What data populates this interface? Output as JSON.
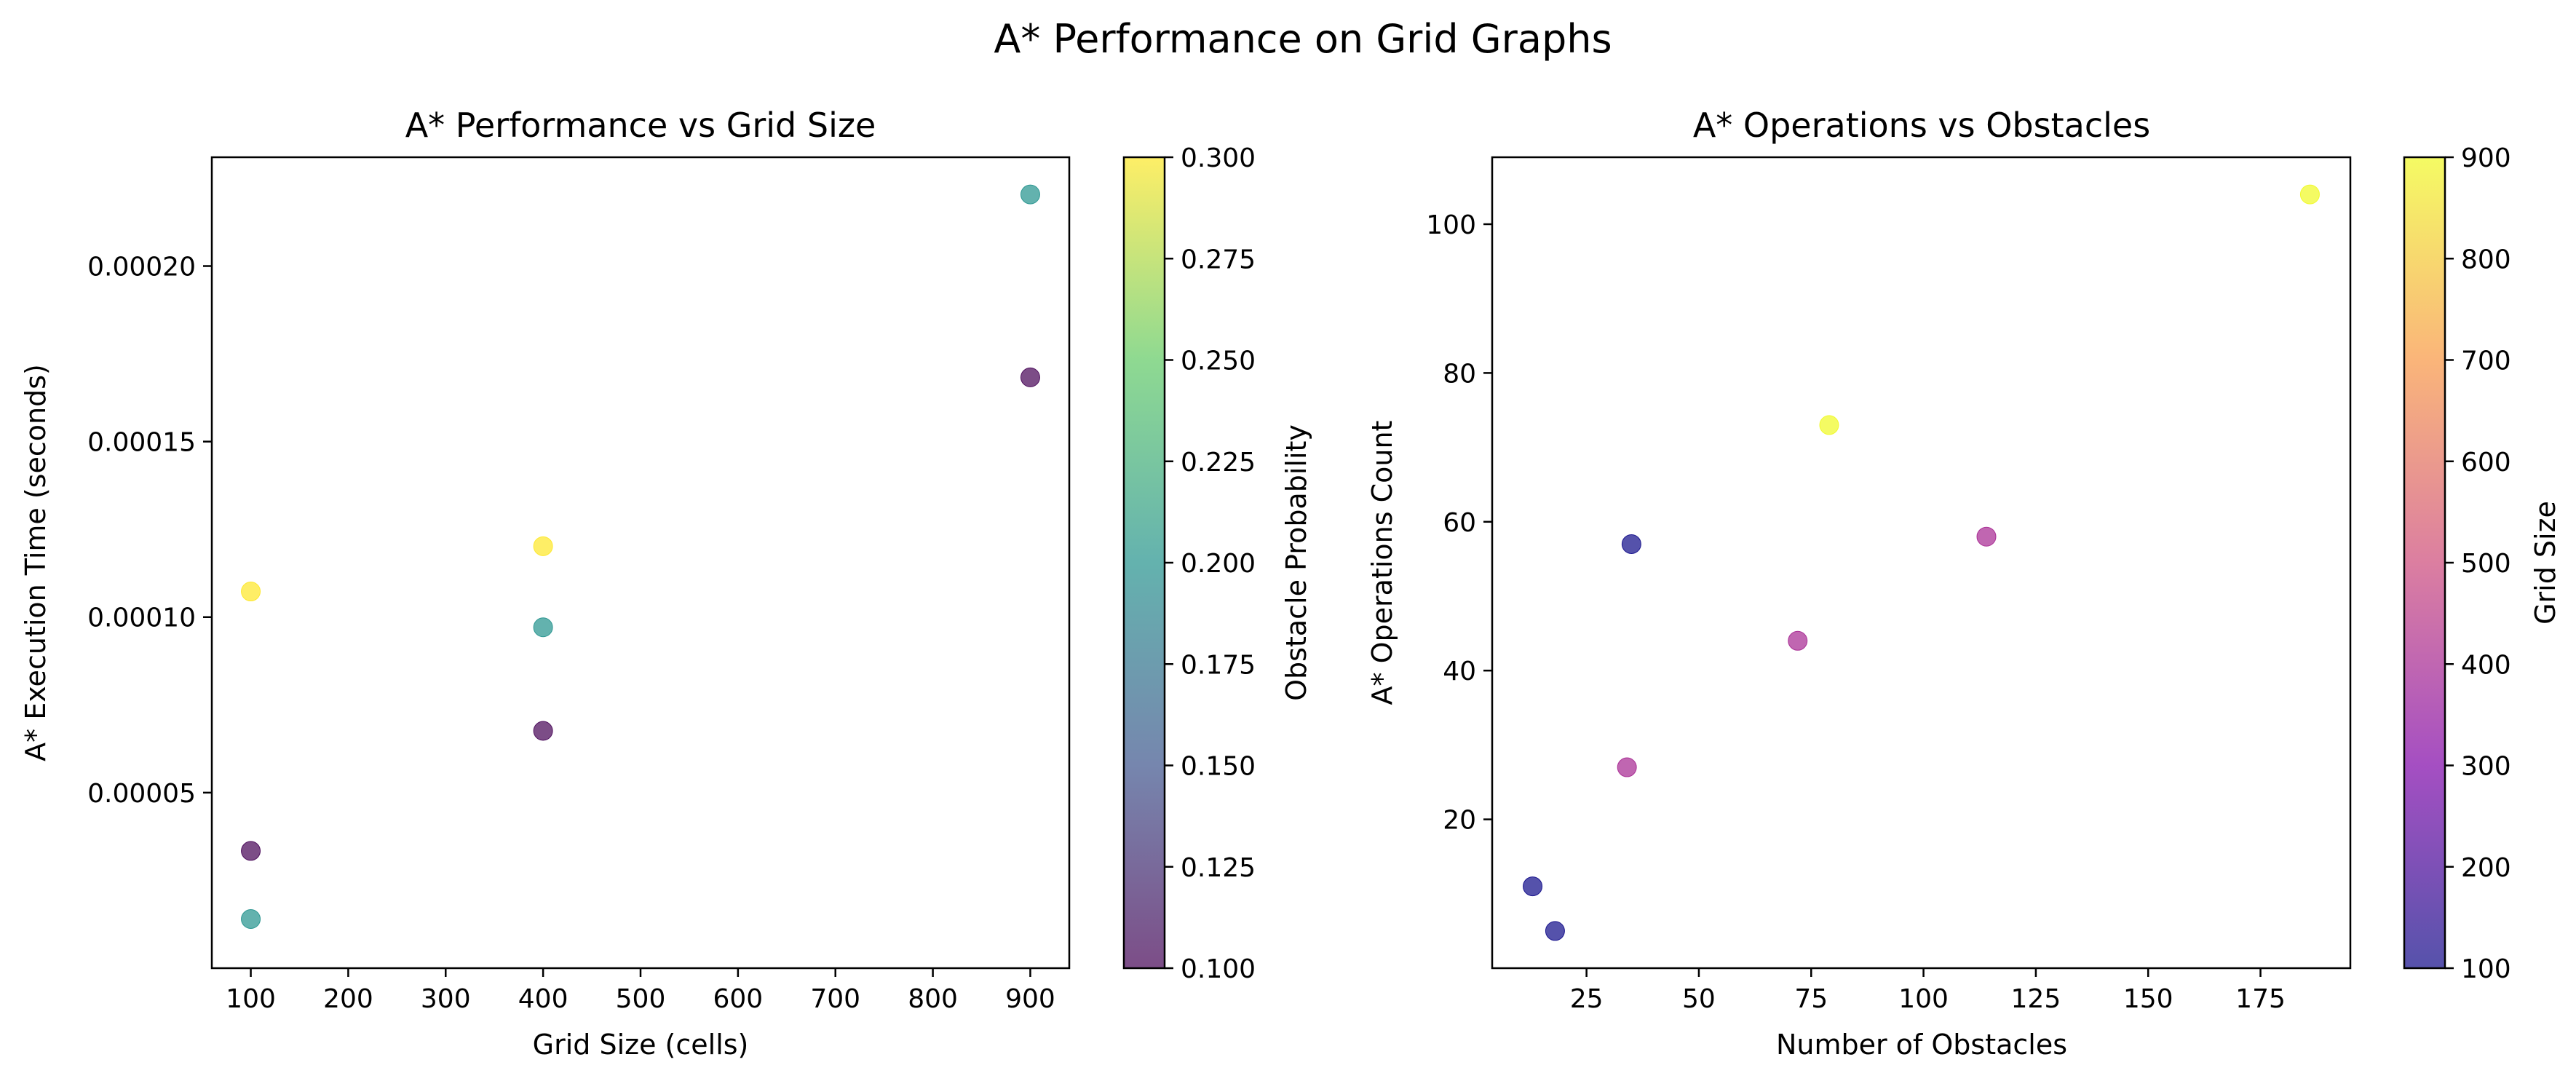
{
  "suptitle": "A* Performance on Grid Graphs",
  "chart_data": [
    {
      "type": "scatter",
      "title": "A* Performance vs Grid Size",
      "xlabel": "Grid Size (cells)",
      "ylabel": "A* Execution Time (seconds)",
      "xlim": [
        60,
        940
      ],
      "ylim": [
        0.0,
        0.000231
      ],
      "xticks": [
        100,
        200,
        300,
        400,
        500,
        600,
        700,
        800,
        900
      ],
      "xtick_labels": [
        "100",
        "200",
        "300",
        "400",
        "500",
        "600",
        "700",
        "800",
        "900"
      ],
      "yticks": [
        5e-05,
        0.0001,
        0.00015,
        0.0002
      ],
      "ytick_labels": [
        "0.00005",
        "0.00010",
        "0.00015",
        "0.00020"
      ],
      "colorbar": {
        "label": "Obstacle Probability",
        "colormap": "viridis",
        "range": [
          0.1,
          0.3
        ],
        "ticks": [
          0.1,
          0.125,
          0.15,
          0.175,
          0.2,
          0.225,
          0.25,
          0.275,
          0.3
        ],
        "tick_labels": [
          "0.100",
          "0.125",
          "0.150",
          "0.175",
          "0.200",
          "0.225",
          "0.250",
          "0.275",
          "0.300"
        ]
      },
      "points": [
        {
          "x": 100,
          "y": 3.34e-05,
          "c": 0.1
        },
        {
          "x": 100,
          "y": 1.4e-05,
          "c": 0.2
        },
        {
          "x": 100,
          "y": 0.0001073,
          "c": 0.3
        },
        {
          "x": 400,
          "y": 6.76e-05,
          "c": 0.1
        },
        {
          "x": 400,
          "y": 9.71e-05,
          "c": 0.2
        },
        {
          "x": 400,
          "y": 0.0001202,
          "c": 0.3
        },
        {
          "x": 900,
          "y": 0.0001683,
          "c": 0.1
        },
        {
          "x": 900,
          "y": 0.0002204,
          "c": 0.2
        }
      ]
    },
    {
      "type": "scatter",
      "title": "A* Operations vs Obstacles",
      "xlabel": "Number of Obstacles",
      "ylabel": "A* Operations Count",
      "xlim": [
        4,
        195
      ],
      "ylim": [
        0,
        109
      ],
      "xticks": [
        25,
        50,
        75,
        100,
        125,
        150,
        175
      ],
      "xtick_labels": [
        "25",
        "50",
        "75",
        "100",
        "125",
        "150",
        "175"
      ],
      "yticks": [
        20,
        40,
        60,
        80,
        100
      ],
      "ytick_labels": [
        "20",
        "40",
        "60",
        "80",
        "100"
      ],
      "colorbar": {
        "label": "Grid Size",
        "colormap": "plasma",
        "range": [
          100,
          900
        ],
        "ticks": [
          100,
          200,
          300,
          400,
          500,
          600,
          700,
          800,
          900
        ],
        "tick_labels": [
          "100",
          "200",
          "300",
          "400",
          "500",
          "600",
          "700",
          "800",
          "900"
        ]
      },
      "points": [
        {
          "x": 13,
          "y": 11,
          "c": 100
        },
        {
          "x": 18,
          "y": 5,
          "c": 100
        },
        {
          "x": 35,
          "y": 57,
          "c": 100
        },
        {
          "x": 34,
          "y": 27,
          "c": 400
        },
        {
          "x": 72,
          "y": 44,
          "c": 400
        },
        {
          "x": 114,
          "y": 58,
          "c": 400
        },
        {
          "x": 79,
          "y": 73,
          "c": 900
        },
        {
          "x": 186,
          "y": 104,
          "c": 900
        }
      ]
    }
  ]
}
